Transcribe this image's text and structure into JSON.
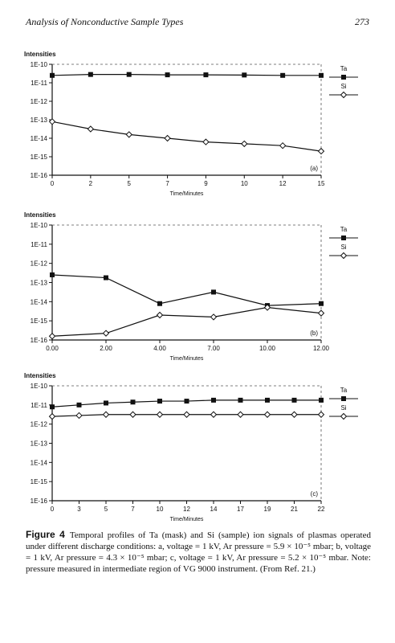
{
  "header": {
    "running_title": "Analysis of Nonconductive Sample Types",
    "page_number": "273"
  },
  "chart_data": [
    {
      "type": "line",
      "panel_label": "(a)",
      "ylabel": "Intensities",
      "xlabel": "Time/Minutes",
      "yscale": "log",
      "y_tick_labels": [
        "1E-10",
        "1E-11",
        "1E-12",
        "1E-13",
        "1E-14",
        "1E-15",
        "1E-16"
      ],
      "y_tick_exponents": [
        -10,
        -11,
        -12,
        -13,
        -14,
        -15,
        -16
      ],
      "ylim_exponents": [
        -16,
        -10
      ],
      "xlim": [
        0,
        15
      ],
      "x_ticks": [
        0,
        2,
        5,
        7,
        9,
        10,
        12,
        15
      ],
      "x_tick_labels": [
        "0",
        "2",
        "5",
        "7",
        "9",
        "10",
        "12",
        "15"
      ],
      "x_tick_positions": [
        0,
        2.143,
        4.286,
        6.429,
        8.571,
        10.714,
        12.857,
        15
      ],
      "legend_position": "right",
      "series": [
        {
          "name": "Ta",
          "marker": "square",
          "x": [
            0,
            2.143,
            4.286,
            6.429,
            8.571,
            10.714,
            12.857,
            15
          ],
          "log10_y": [
            -10.6,
            -10.55,
            -10.55,
            -10.57,
            -10.57,
            -10.58,
            -10.6,
            -10.6
          ]
        },
        {
          "name": "Si",
          "marker": "diamond",
          "x": [
            0,
            2.143,
            4.286,
            6.429,
            8.571,
            10.714,
            12.857,
            15
          ],
          "log10_y": [
            -13.1,
            -13.5,
            -13.8,
            -14.0,
            -14.2,
            -14.3,
            -14.4,
            -14.7
          ]
        }
      ]
    },
    {
      "type": "line",
      "panel_label": "(b)",
      "ylabel": "Intensities",
      "xlabel": "Time/Minutes",
      "yscale": "log",
      "y_tick_labels": [
        "1E-10",
        "1E-11",
        "1E-12",
        "1E-13",
        "1E-14",
        "1E-15",
        "1E-16"
      ],
      "y_tick_exponents": [
        -10,
        -11,
        -12,
        -13,
        -14,
        -15,
        -16
      ],
      "ylim_exponents": [
        -16,
        -10
      ],
      "xlim": [
        0,
        12
      ],
      "x_ticks": [
        0,
        2,
        4,
        7,
        10,
        12
      ],
      "x_tick_labels": [
        "0.00",
        "2.00",
        "4.00",
        "7.00",
        "10.00",
        "12.00"
      ],
      "x_tick_positions": [
        0,
        2.4,
        4.8,
        7.2,
        9.6,
        12
      ],
      "legend_position": "right",
      "series": [
        {
          "name": "Ta",
          "marker": "square",
          "x": [
            0,
            2.4,
            4.8,
            7.2,
            9.6,
            12
          ],
          "log10_y": [
            -12.6,
            -12.75,
            -14.1,
            -13.5,
            -14.2,
            -14.1
          ]
        },
        {
          "name": "Si",
          "marker": "diamond",
          "x": [
            0,
            2.4,
            4.8,
            7.2,
            9.6,
            12
          ],
          "log10_y": [
            -15.8,
            -15.65,
            -14.7,
            -14.8,
            -14.3,
            -14.6
          ]
        }
      ]
    },
    {
      "type": "line",
      "panel_label": "(c)",
      "ylabel": "Intensities",
      "xlabel": "Time/Minutes",
      "yscale": "log",
      "y_tick_labels": [
        "1E-10",
        "1E-11",
        "1E-12",
        "1E-13",
        "1E-14",
        "1E-15",
        "1E-16"
      ],
      "y_tick_exponents": [
        -10,
        -11,
        -12,
        -13,
        -14,
        -15,
        -16
      ],
      "ylim_exponents": [
        -16,
        -10
      ],
      "xlim": [
        0,
        22
      ],
      "x_ticks": [
        0,
        3,
        5,
        7,
        10,
        12,
        14,
        17,
        19,
        21,
        22
      ],
      "x_tick_labels": [
        "0",
        "3",
        "5",
        "7",
        "10",
        "12",
        "14",
        "17",
        "19",
        "21",
        "22"
      ],
      "x_tick_positions": [
        0,
        2.2,
        4.4,
        6.6,
        8.8,
        11,
        13.2,
        15.4,
        17.6,
        19.8,
        22
      ],
      "legend_position": "right",
      "series": [
        {
          "name": "Ta",
          "marker": "square",
          "x": [
            0,
            2.2,
            4.4,
            6.6,
            8.8,
            11,
            13.2,
            15.4,
            17.6,
            19.8,
            22
          ],
          "log10_y": [
            -11.1,
            -11.0,
            -10.9,
            -10.85,
            -10.8,
            -10.8,
            -10.75,
            -10.75,
            -10.75,
            -10.75,
            -10.75
          ]
        },
        {
          "name": "Si",
          "marker": "diamond",
          "x": [
            0,
            2.2,
            4.4,
            6.6,
            8.8,
            11,
            13.2,
            15.4,
            17.6,
            19.8,
            22
          ],
          "log10_y": [
            -11.6,
            -11.55,
            -11.5,
            -11.5,
            -11.5,
            -11.5,
            -11.5,
            -11.5,
            -11.5,
            -11.5,
            -11.5
          ]
        }
      ]
    }
  ],
  "caption": {
    "label": "Figure 4",
    "text": "Temporal profiles of Ta (mask) and Si (sample) ion signals of plasmas operated under different discharge conditions: a, voltage = 1 kV, Ar pressure = 5.9 × 10⁻⁵ mbar; b, voltage = 1 kV, Ar pressure = 4.3 × 10⁻⁵ mbar; c, voltage = 1 kV, Ar pressure = 5.2 × 10⁻⁵ mbar. Note: pressure measured in intermediate region of VG 9000 instrument. (From Ref. 21.)"
  }
}
